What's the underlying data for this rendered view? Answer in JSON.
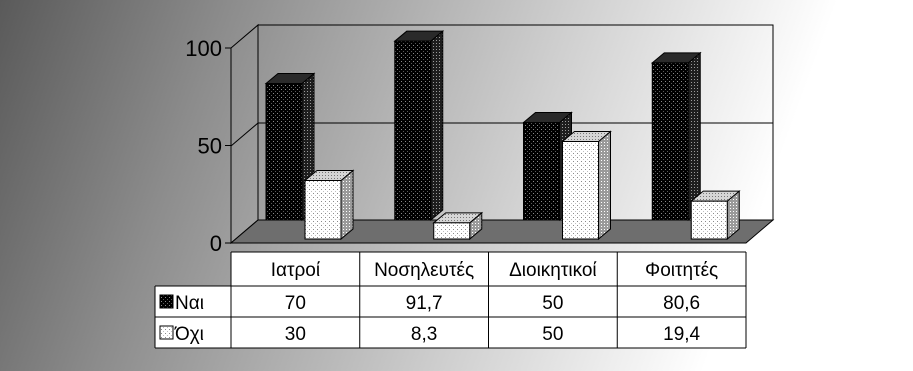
{
  "chart_data": {
    "type": "bar",
    "categories": [
      "Ιατροί",
      "Νοσηλευτές",
      "Διοικητικοί",
      "Φοιτητές"
    ],
    "series": [
      {
        "name": "Ναι",
        "values": [
          70,
          91.7,
          50,
          80.6
        ],
        "display": [
          "70",
          "91,7",
          "50",
          "80,6"
        ],
        "pattern": "dark-dotted"
      },
      {
        "name": "Όχι",
        "values": [
          30,
          8.3,
          50,
          19.4
        ],
        "display": [
          "30",
          "8,3",
          "50",
          "19,4"
        ],
        "pattern": "light-dotted"
      }
    ],
    "y_ticks": [
      "0",
      "50",
      "100"
    ],
    "y_tick_values": [
      0,
      50,
      100
    ],
    "ylim": [
      0,
      100
    ],
    "grid": true,
    "legend": "data-table-left",
    "style": "3d-clustered-column-with-data-table"
  }
}
